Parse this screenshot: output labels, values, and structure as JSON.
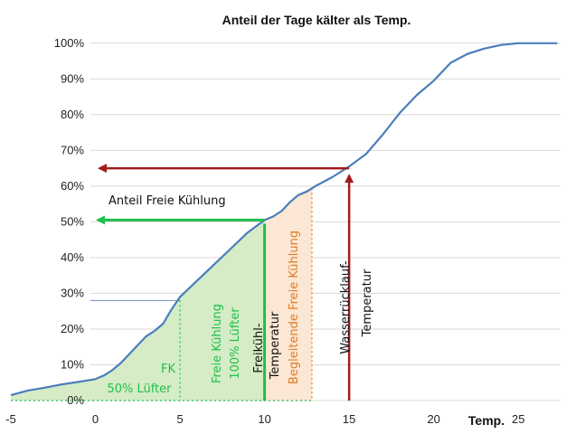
{
  "chart_data": {
    "type": "line",
    "title": "Anteil der Tage kälter als Temp.",
    "xlabel": "Temp.",
    "ylabel": "",
    "xlim": [
      -5,
      27.5
    ],
    "ylim": [
      0,
      105
    ],
    "xticks": [
      -5,
      0,
      5,
      10,
      15,
      20,
      25
    ],
    "yticks": [
      0,
      10,
      20,
      30,
      40,
      50,
      60,
      70,
      80,
      90,
      100
    ],
    "ytick_labels": [
      "0%",
      "10%",
      "20%",
      "30%",
      "40%",
      "50%",
      "60%",
      "70%",
      "80%",
      "90%",
      "100%"
    ],
    "grid": true,
    "colors": {
      "curve": "#4a7ebb",
      "freie_kuehlung": "#1fbf4a",
      "fill_green": "#d5ecc6",
      "begleitend": "#e07b25",
      "fill_orange": "#fbe7d3",
      "wasser": "#a01c1c",
      "guide": "#6c8ebf"
    },
    "series": [
      {
        "x": [
          -5,
          -4,
          -3,
          -2,
          -1,
          0,
          0.5,
          1,
          1.5,
          2,
          2.5,
          3,
          3.5,
          4,
          4.5,
          5,
          6,
          7,
          8,
          9,
          10,
          10.5,
          11,
          11.5,
          12,
          12.5,
          13,
          14,
          15,
          16,
          17,
          18,
          19,
          20,
          21,
          22,
          23,
          24,
          25,
          26,
          27.3
        ],
        "y": [
          1.5,
          2.8,
          3.6,
          4.5,
          5.2,
          6,
          7,
          8.5,
          10.5,
          13,
          15.5,
          18,
          19.5,
          21.5,
          25.5,
          29,
          33.5,
          38,
          42.5,
          47,
          50.5,
          51.5,
          53,
          55.5,
          57.5,
          58.5,
          60,
          62.5,
          65.5,
          69,
          74.5,
          80.5,
          85.5,
          89.5,
          94.5,
          97,
          98.5,
          99.5,
          100,
          100,
          100
        ]
      }
    ],
    "annotations": {
      "anteil_freie_kuehlung": "Anteil Freie Kühlung",
      "fk": "FK",
      "lufter50": "50% Lüfter",
      "freie_kuehlung": "Freie Kühlung",
      "lufter100": "100% Lüfter",
      "freikuehl": "Freikühl-",
      "temperatur": "Temperatur",
      "begleitende": "Begleitende Freie Kühlung",
      "wasserruecklauf": "Wasserrücklauf-",
      "wasser_temperatur": "Temperatur"
    },
    "markers": {
      "fk50_x": 5,
      "fk50_y": 28,
      "freikuehl_x": 10,
      "freikuehl_y": 50.5,
      "begleitend_x": 12.8,
      "wasser_x": 15,
      "wasser_y": 65
    }
  }
}
